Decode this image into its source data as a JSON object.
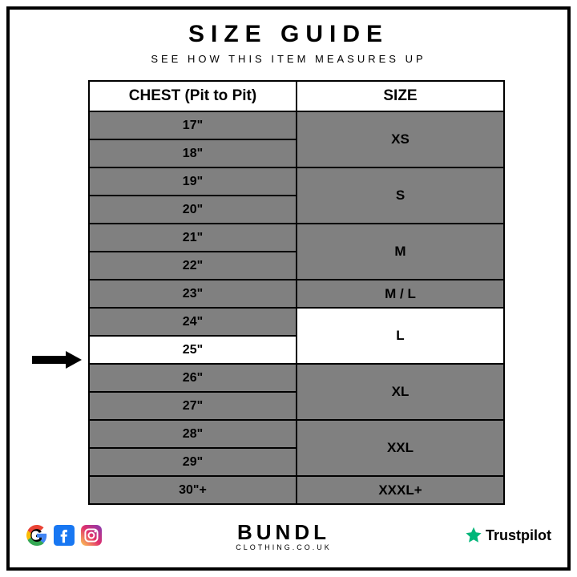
{
  "header": {
    "title": "SIZE GUIDE",
    "subtitle": "SEE HOW THIS ITEM MEASURES UP"
  },
  "table": {
    "col_chest": "CHEST (Pit to Pit)",
    "col_size": "SIZE",
    "rows": [
      {
        "chest": "17\"",
        "hl": false
      },
      {
        "chest": "18\"",
        "hl": false
      },
      {
        "chest": "19\"",
        "hl": false
      },
      {
        "chest": "20\"",
        "hl": false
      },
      {
        "chest": "21\"",
        "hl": false
      },
      {
        "chest": "22\"",
        "hl": false
      },
      {
        "chest": "23\"",
        "hl": false
      },
      {
        "chest": "24\"",
        "hl": false
      },
      {
        "chest": "25\"",
        "hl": true
      },
      {
        "chest": "26\"",
        "hl": false
      },
      {
        "chest": "27\"",
        "hl": false
      },
      {
        "chest": "28\"",
        "hl": false
      },
      {
        "chest": "29\"",
        "hl": false
      },
      {
        "chest": "30\"+",
        "hl": false
      }
    ],
    "sizes": [
      {
        "label": "XS",
        "span": 2,
        "hl": false
      },
      {
        "label": "S",
        "span": 2,
        "hl": false
      },
      {
        "label": "M",
        "span": 2,
        "hl": false
      },
      {
        "label": "M / L",
        "span": 1,
        "hl": false
      },
      {
        "label": "L",
        "span": 2,
        "hl": true
      },
      {
        "label": "XL",
        "span": 2,
        "hl": false
      },
      {
        "label": "XXL",
        "span": 2,
        "hl": false
      },
      {
        "label": "XXXL+",
        "span": 1,
        "hl": false
      }
    ],
    "colors": {
      "cell_bg": "#808080",
      "highlight_bg": "#ffffff",
      "border": "#000000",
      "text": "#000000"
    }
  },
  "footer": {
    "brand_name": "BUNDL",
    "brand_domain": "CLOTHING.CO.UK",
    "trustpilot": "Trustpilot",
    "social": {
      "google": "G",
      "facebook": "f",
      "instagram": "ig"
    },
    "trust_star_color": "#00b67a"
  }
}
